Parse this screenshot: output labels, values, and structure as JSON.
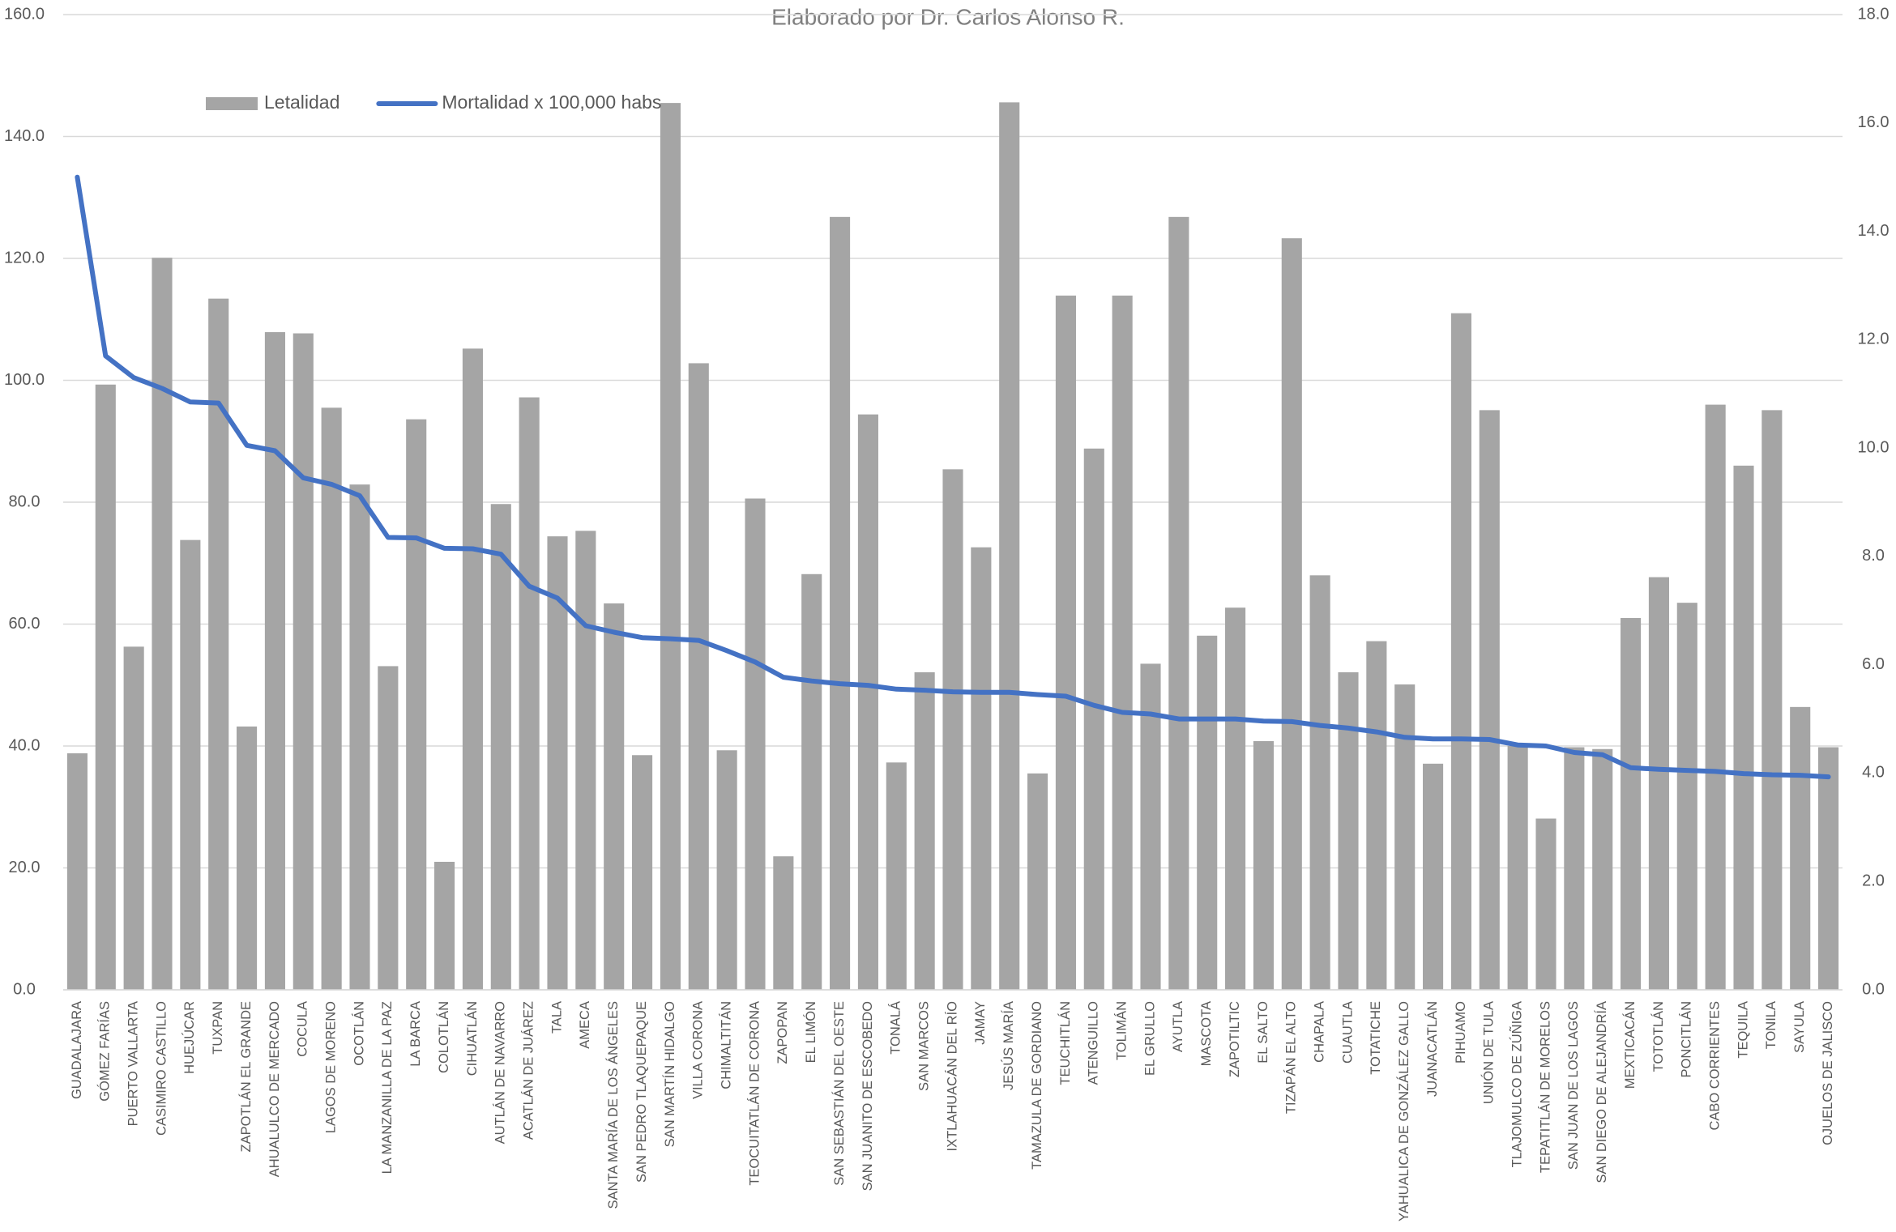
{
  "chart_data": {
    "type": "combo",
    "title": "Elaborado por Dr. Carlos Alonso R.",
    "legend": "upper left",
    "grid": true,
    "categories": [
      "GUADALAJARA",
      "GÓMEZ FARÍAS",
      "PUERTO VALLARTA",
      "CASIMIRO CASTILLO",
      "HUEJÚCAR",
      "TUXPAN",
      "ZAPOTLÁN EL GRANDE",
      "AHUALULCO DE MERCADO",
      "COCULA",
      "LAGOS DE MORENO",
      "OCOTLÁN",
      "LA MANZANILLA DE LA PAZ",
      "LA BARCA",
      "COLOTLÁN",
      "CIHUATLÁN",
      "AUTLÁN DE NAVARRO",
      "ACATLÁN DE JUÁREZ",
      "TALA",
      "AMECA",
      "SANTA MARÍA DE LOS ÁNGELES",
      "SAN PEDRO TLAQUEPAQUE",
      "SAN MARTÍN HIDALGO",
      "VILLA CORONA",
      "CHIMALTITÁN",
      "TEOCUITATLÁN DE CORONA",
      "ZAPOPAN",
      "EL LIMÓN",
      "SAN SEBASTIÁN DEL OESTE",
      "SAN JUANITO DE ESCOBEDO",
      "TONALÁ",
      "SAN MARCOS",
      "IXTLAHUACÁN DEL RÍO",
      "JAMAY",
      "JESÚS MARÍA",
      "TAMAZULA DE GORDIANO",
      "TEUCHITLÁN",
      "ATENGUILLO",
      "TOLIMÁN",
      "EL GRULLO",
      "AYUTLA",
      "MASCOTA",
      "ZAPOTILTIC",
      "EL SALTO",
      "TIZAPÁN EL ALTO",
      "CHAPALA",
      "CUAUTLA",
      "TOTATICHE",
      "YAHUALICA DE GONZÁLEZ GALLO",
      "JUANACATLÁN",
      "PIHUAMO",
      "UNIÓN DE TULA",
      "TLAJOMULCO DE ZÚÑIGA",
      "TEPATITLÁN DE MORELOS",
      "SAN JUAN DE LOS LAGOS",
      "SAN DIEGO DE ALEJANDRÍA",
      "MEXTICACÁN",
      "TOTOTLÁN",
      "PONCITLÁN",
      "CABO CORRIENTES",
      "TEQUILA",
      "TONILA",
      "SAYULA",
      "OJUELOS DE JALISCO"
    ],
    "series": [
      {
        "name": "Letalidad",
        "type": "bar",
        "color": "#a5a5a5",
        "values": [
          38.8,
          99.3,
          56.3,
          120.1,
          73.8,
          113.4,
          43.2,
          107.9,
          107.7,
          95.5,
          82.9,
          53.1,
          93.6,
          21.0,
          105.2,
          79.7,
          97.2,
          74.4,
          75.3,
          63.4,
          38.5,
          145.5,
          102.8,
          39.3,
          80.6,
          21.9,
          68.2,
          126.8,
          94.4,
          37.3,
          52.1,
          85.4,
          72.6,
          145.6,
          35.5,
          113.9,
          88.8,
          113.9,
          53.5,
          126.8,
          58.1,
          62.7,
          40.8,
          123.3,
          68.0,
          52.1,
          57.2,
          50.1,
          37.1,
          111.0,
          95.1,
          40.0,
          28.1,
          39.8,
          39.5,
          61.0,
          67.7,
          63.5,
          96.0,
          86.0,
          95.1,
          46.4,
          39.8
        ]
      },
      {
        "name": "Mortalidad x 100,000 habs",
        "type": "line",
        "axis": "y2",
        "color": "#4472c4",
        "values": [
          15.0,
          11.7,
          11.3,
          11.1,
          10.85,
          10.83,
          10.05,
          9.95,
          9.45,
          9.33,
          9.12,
          8.35,
          8.34,
          8.15,
          8.14,
          8.04,
          7.45,
          7.23,
          6.72,
          6.6,
          6.5,
          6.48,
          6.45,
          6.26,
          6.05,
          5.77,
          5.7,
          5.65,
          5.62,
          5.55,
          5.53,
          5.5,
          5.49,
          5.49,
          5.45,
          5.42,
          5.25,
          5.12,
          5.09,
          5.0,
          5.0,
          5.0,
          4.96,
          4.95,
          4.88,
          4.83,
          4.76,
          4.66,
          4.63,
          4.63,
          4.62,
          4.52,
          4.5,
          4.38,
          4.34,
          4.1,
          4.07,
          4.05,
          4.03,
          3.99,
          3.97,
          3.96,
          3.93
        ]
      }
    ],
    "ylim": [
      0,
      160
    ],
    "yticks": [
      {
        "value": 0,
        "label": "0.0"
      },
      {
        "value": 20,
        "label": "20.0"
      },
      {
        "value": 40,
        "label": "40.0"
      },
      {
        "value": 60,
        "label": "60.0"
      },
      {
        "value": 80,
        "label": "80.0"
      },
      {
        "value": 100,
        "label": "100.0"
      },
      {
        "value": 120,
        "label": "120.0"
      },
      {
        "value": 140,
        "label": "140.0"
      },
      {
        "value": 160,
        "label": "160.0"
      }
    ],
    "y2lim": [
      0,
      18
    ],
    "y2ticks": [
      {
        "value": 0,
        "label": "0.0"
      },
      {
        "value": 2,
        "label": "2.0"
      },
      {
        "value": 4,
        "label": "4.0"
      },
      {
        "value": 6,
        "label": "6.0"
      },
      {
        "value": 8,
        "label": "8.0"
      },
      {
        "value": 10,
        "label": "10.0"
      },
      {
        "value": 12,
        "label": "12.0"
      },
      {
        "value": 14,
        "label": "14.0"
      },
      {
        "value": 16,
        "label": "16.0"
      },
      {
        "value": 18,
        "label": "18.0"
      }
    ]
  }
}
